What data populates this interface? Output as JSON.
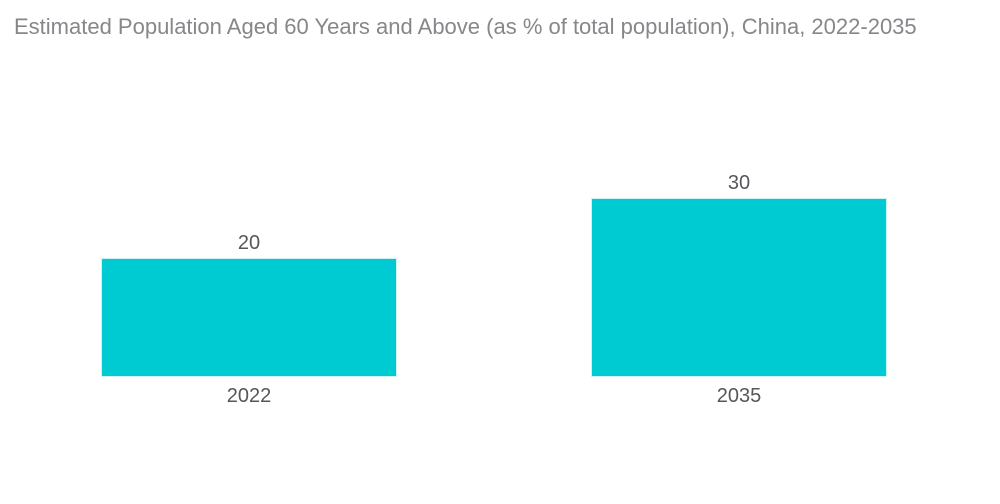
{
  "chart_data": {
    "type": "bar",
    "title": "Estimated Population Aged 60 Years and Above (as % of total population), China, 2022-2035",
    "categories": [
      "2022",
      "2035"
    ],
    "values": [
      20,
      30
    ],
    "xlabel": "",
    "ylabel": "",
    "ylim": [
      0,
      30
    ],
    "grid": false,
    "legend": false,
    "bar_color": "#00CBD2",
    "bar_edge_color": "#cdf3f5",
    "label_color": "#55575A",
    "title_color": "#85878A",
    "background_color": "#FFFFFF"
  }
}
